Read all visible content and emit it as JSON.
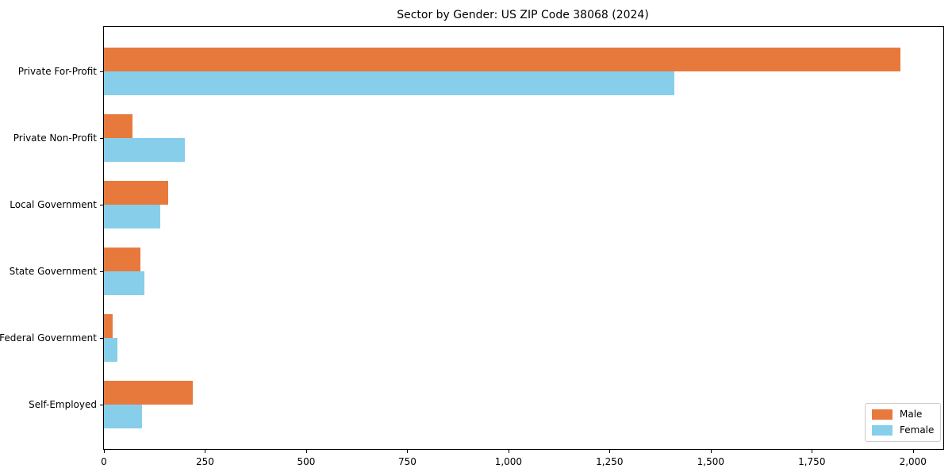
{
  "title": "Sector by Gender: US ZIP Code 38068 (2024)",
  "colors": {
    "male": "#E8793D",
    "female": "#87CEEB",
    "axis": "#000000",
    "legend_border": "#cccccc",
    "background": "#ffffff"
  },
  "legend": {
    "position": "lower right",
    "items": [
      {
        "label": "Male",
        "color": "#E8793D"
      },
      {
        "label": "Female",
        "color": "#87CEEB"
      }
    ]
  },
  "chart_data": {
    "type": "bar",
    "orientation": "horizontal",
    "title": "Sector by Gender: US ZIP Code 38068 (2024)",
    "xlabel": "",
    "ylabel": "",
    "grid": false,
    "legend_position": "lower right",
    "categories": [
      "Private For-Profit",
      "Private Non-Profit",
      "Local Government",
      "State Government",
      "Federal Government",
      "Self-Employed"
    ],
    "series": [
      {
        "name": "Male",
        "color": "#E8793D",
        "values": [
          1970,
          70,
          158,
          90,
          22,
          220
        ]
      },
      {
        "name": "Female",
        "color": "#87CEEB",
        "values": [
          1410,
          200,
          140,
          100,
          33,
          95
        ]
      }
    ],
    "xlim": [
      0,
      2075
    ],
    "xticks": [
      0,
      250,
      500,
      750,
      1000,
      1250,
      1500,
      1750,
      2000
    ],
    "xtick_labels": [
      "0",
      "250",
      "500",
      "750",
      "1,000",
      "1,250",
      "1,500",
      "1,750",
      "2,000"
    ]
  }
}
